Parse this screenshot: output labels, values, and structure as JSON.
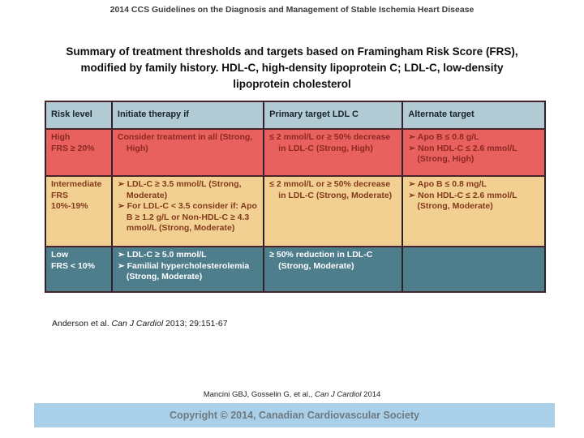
{
  "slide": {
    "header_title": "2014 CCS Guidelines on the Diagnosis and Management of Stable Ischemia Heart Disease",
    "subtitle": "Summary of treatment thresholds and targets based on Framingham Risk Score (FRS), modified by family history. HDL-C, high-density lipoprotein C; LDL-C, low-density lipoprotein cholesterol"
  },
  "table": {
    "headers": [
      "Risk level",
      "Initiate therapy if",
      "Primary target LDL C",
      "Alternate target"
    ],
    "rows": [
      {
        "risk": [
          "High",
          "FRS ≥ 20%"
        ],
        "initiate": [
          "Consider treatment in all (Strong, High)"
        ],
        "primary": [
          "≤ 2 mmol/L or ≥ 50% decrease in LDL-C (Strong, High)"
        ],
        "alternate": [
          "➢ Apo B ≤ 0.8 g/L",
          "➢ Non HDL-C ≤ 2.6 mmol/L (Strong, High)"
        ]
      },
      {
        "risk": [
          "Intermediate",
          "FRS 10%-19%"
        ],
        "initiate": [
          "➢ LDL-C ≥ 3.5 mmol/L (Strong, Moderate)",
          "➢ For LDL-C < 3.5 consider if: Apo B ≥ 1.2 g/L or Non-HDL-C ≥ 4.3 mmol/L (Strong, Moderate)"
        ],
        "primary": [
          "≤ 2 mmol/L or ≥ 50% decrease in LDL-C (Strong, Moderate)"
        ],
        "alternate": [
          "➢ Apo B ≤ 0.8 mg/L",
          "➢ Non HDL-C ≤ 2.6 mmol/L (Strong, Moderate)"
        ]
      },
      {
        "risk": [
          "Low",
          "FRS < 10%"
        ],
        "initiate": [
          "➢ LDL-C ≥ 5.0 mmol/L",
          "➢ Familial hypercholesterolemia (Strong, Moderate)"
        ],
        "primary": [
          "≥ 50% reduction in LDL-C (Strong, Moderate)"
        ],
        "alternate": []
      }
    ]
  },
  "citation": {
    "prefix": "Anderson et al. ",
    "journal": "Can J Cardiol",
    "suffix": " 2013; 29:151-67"
  },
  "source_line": {
    "prefix": "Mancini GBJ, Gosselin G, et al., ",
    "journal": "Can J Cardiol",
    "suffix": " 2014"
  },
  "footer": {
    "copyright": "Copyright © 2014, Canadian Cardiovascular Society"
  },
  "colors": {
    "header_row_bg": "#b2cad4",
    "high_row_bg": "#e8615e",
    "high_row_text": "#8c2723",
    "intermediate_row_bg": "#f2d092",
    "intermediate_row_text": "#83391b",
    "low_row_bg": "#4e7d8c",
    "low_row_text": "#ffffff",
    "copyright_bar_bg": "#aacfe9",
    "copyright_text": "#6e7a80"
  }
}
